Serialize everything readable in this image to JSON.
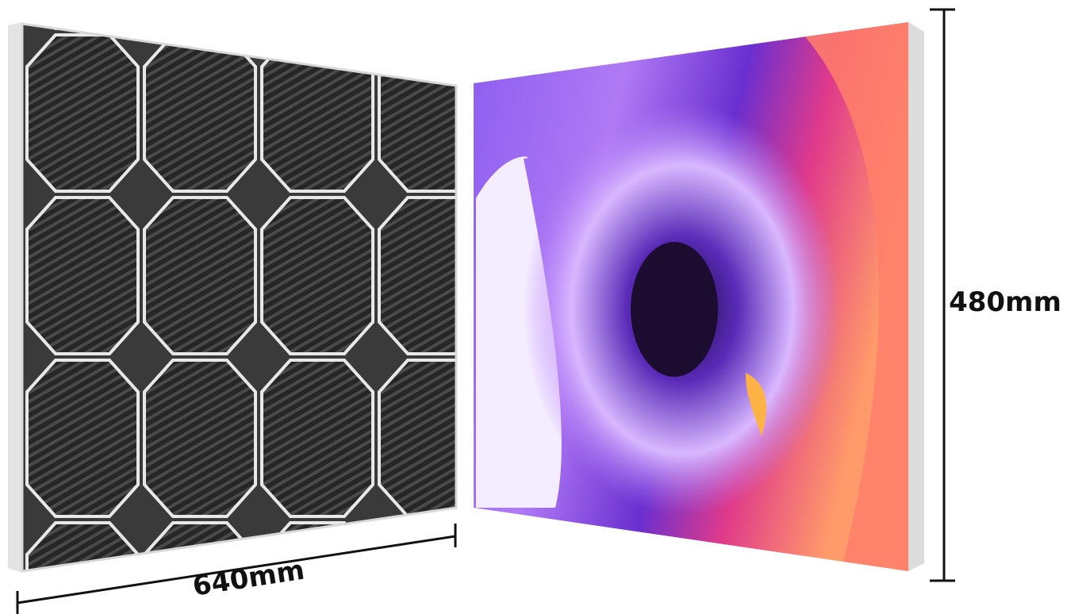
{
  "dimensions": {
    "width": "640mm",
    "height": "480mm"
  }
}
